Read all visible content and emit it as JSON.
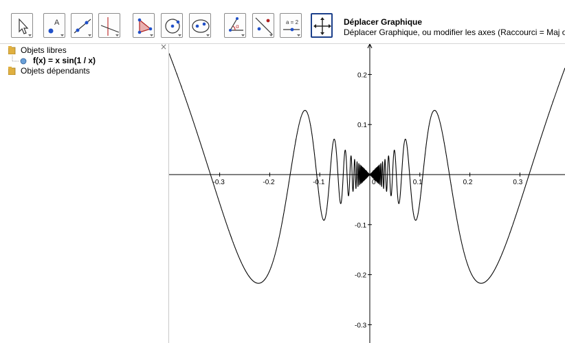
{
  "toolbar": {
    "tools": [
      {
        "name": "move",
        "icon": "arrow-pointer-icon",
        "active": false
      },
      {
        "name": "point",
        "icon": "point-A-icon",
        "active": false
      },
      {
        "name": "line",
        "icon": "line-through-two-points-icon",
        "active": false
      },
      {
        "name": "perpendicular-line",
        "icon": "perpendicular-line-icon",
        "active": false
      },
      {
        "name": "polygon",
        "icon": "polygon-icon",
        "active": false
      },
      {
        "name": "circle",
        "icon": "circle-center-point-icon",
        "active": false
      },
      {
        "name": "ellipse",
        "icon": "ellipse-icon",
        "active": false
      },
      {
        "name": "angle",
        "icon": "angle-icon",
        "active": false
      },
      {
        "name": "reflect",
        "icon": "reflect-about-line-icon",
        "active": false
      },
      {
        "name": "slider",
        "icon": "slider-icon",
        "active": false
      },
      {
        "name": "move-graphics-view",
        "icon": "move-graphics-cross-icon",
        "active": true
      }
    ],
    "slider_label": "a = 2",
    "active_tool_title": "Déplacer Graphique",
    "active_tool_description": "Déplacer Graphique, ou modifier les axes (Raccourci = Maj ou"
  },
  "algebra_view": {
    "close_label": "×",
    "free_objects_label": "Objets libres",
    "dependent_objects_label": "Objets dépendants",
    "functions": [
      {
        "definition": "f(x) = x sin(1 / x)"
      }
    ]
  },
  "graphics_view": {
    "x_ticks": [
      {
        "value": -0.3,
        "label": "-0.3"
      },
      {
        "value": -0.2,
        "label": "-0.2"
      },
      {
        "value": -0.1,
        "label": "-0.1"
      },
      {
        "value": 0,
        "label": "0"
      },
      {
        "value": 0.1,
        "label": "0.1"
      },
      {
        "value": 0.2,
        "label": "0.2"
      },
      {
        "value": 0.3,
        "label": "0.3"
      }
    ],
    "y_ticks": [
      {
        "value": 0.2,
        "label": "0.2"
      },
      {
        "value": 0.1,
        "label": "0.1"
      },
      {
        "value": -0.1,
        "label": "-0.1"
      },
      {
        "value": -0.2,
        "label": "-0.2"
      },
      {
        "value": -0.3,
        "label": "-0.3"
      }
    ],
    "curve_color": "#000000",
    "axis_color": "#000000"
  }
}
